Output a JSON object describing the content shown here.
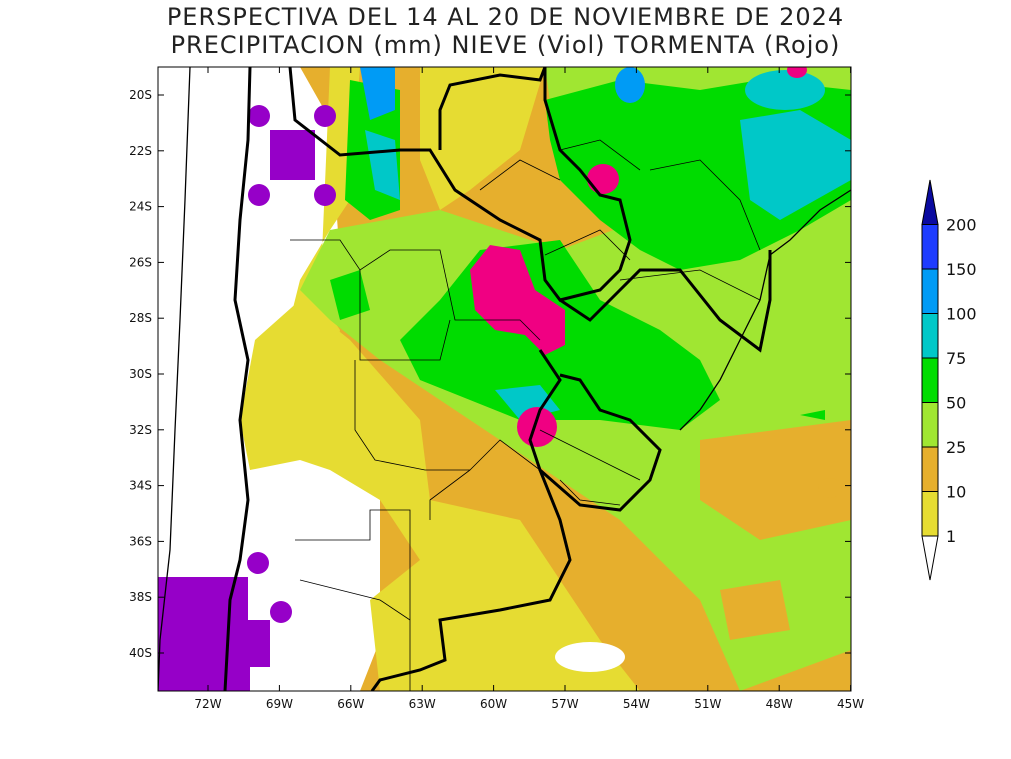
{
  "title_line1": "PERSPECTIVA DEL 14 AL 20 DE NOVIEMBRE DE 2024",
  "title_line2": "PRECIPITACION (mm) NIEVE (Viol) TORMENTA (Rojo)",
  "lat_ticks": [
    "20S",
    "22S",
    "24S",
    "26S",
    "28S",
    "30S",
    "32S",
    "34S",
    "36S",
    "38S",
    "40S"
  ],
  "lon_ticks": [
    "72W",
    "69W",
    "66W",
    "63W",
    "60W",
    "57W",
    "54W",
    "51W",
    "48W",
    "45W"
  ],
  "colorbar": {
    "labels": [
      "1",
      "10",
      "25",
      "50",
      "75",
      "100",
      "150",
      "200"
    ],
    "colors": [
      "#e6dc32",
      "#e6af2d",
      "#a0e632",
      "#00dc00",
      "#00c8c8",
      "#009bf5",
      "#1e3cff",
      "#0a0aa0"
    ]
  },
  "overlay_colors": {
    "snow": "#9600c8",
    "storm": "#f00082"
  }
}
